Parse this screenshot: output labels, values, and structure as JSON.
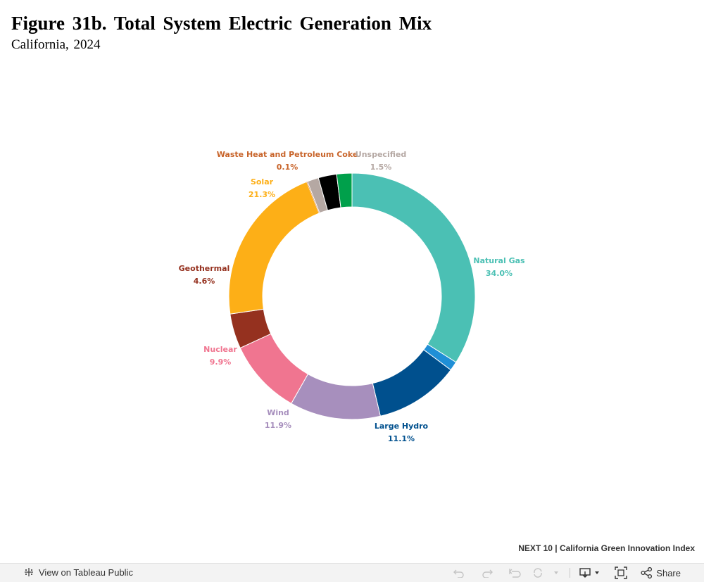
{
  "header": {
    "title": "Figure 31b. Total System Electric Generation Mix",
    "subtitle": "California, 2024"
  },
  "chart_data": {
    "type": "pie",
    "variant": "donut",
    "slices": [
      {
        "label": "Natural Gas",
        "value": 34.0,
        "value_label": "34.0%",
        "color": "#4bc0b4",
        "label_color": "#4bc0b4"
      },
      {
        "label": "",
        "value": 1.2,
        "value_label": "",
        "color": "#1f8fd6",
        "label_color": "#1f8fd6"
      },
      {
        "label": "Large Hydro",
        "value": 11.1,
        "value_label": "11.1%",
        "color": "#00508e",
        "label_color": "#00508e"
      },
      {
        "label": "Wind",
        "value": 11.9,
        "value_label": "11.9%",
        "color": "#a78fbd",
        "label_color": "#a78fbd"
      },
      {
        "label": "Nuclear",
        "value": 9.9,
        "value_label": "9.9%",
        "color": "#f07590",
        "label_color": "#f07590"
      },
      {
        "label": "Geothermal",
        "value": 4.6,
        "value_label": "4.6%",
        "color": "#95311f",
        "label_color": "#95311f"
      },
      {
        "label": "Solar",
        "value": 21.3,
        "value_label": "21.3%",
        "color": "#fdaf17",
        "label_color": "#fdaf17"
      },
      {
        "label": "Waste Heat and Petroleum Coke",
        "value": 0.1,
        "value_label": "0.1%",
        "color": "#c8642a",
        "label_color": "#c8642a"
      },
      {
        "label": "Unspecified",
        "value": 1.5,
        "value_label": "1.5%",
        "color": "#b5a8a3",
        "label_color": "#b5a8a3"
      },
      {
        "label": "",
        "value": 2.4,
        "value_label": "",
        "color": "#000000",
        "label_color": "#000000"
      },
      {
        "label": "",
        "value": 2.0,
        "value_label": "",
        "color": "#00a04b",
        "label_color": "#00a04b"
      }
    ],
    "start_angle_deg": 0,
    "direction": "clockwise",
    "legend": "none"
  },
  "footer": {
    "credit": "NEXT 10 | California Green Innovation Index"
  },
  "toolbar": {
    "view_label": "View on Tableau Public",
    "share_label": "Share"
  }
}
